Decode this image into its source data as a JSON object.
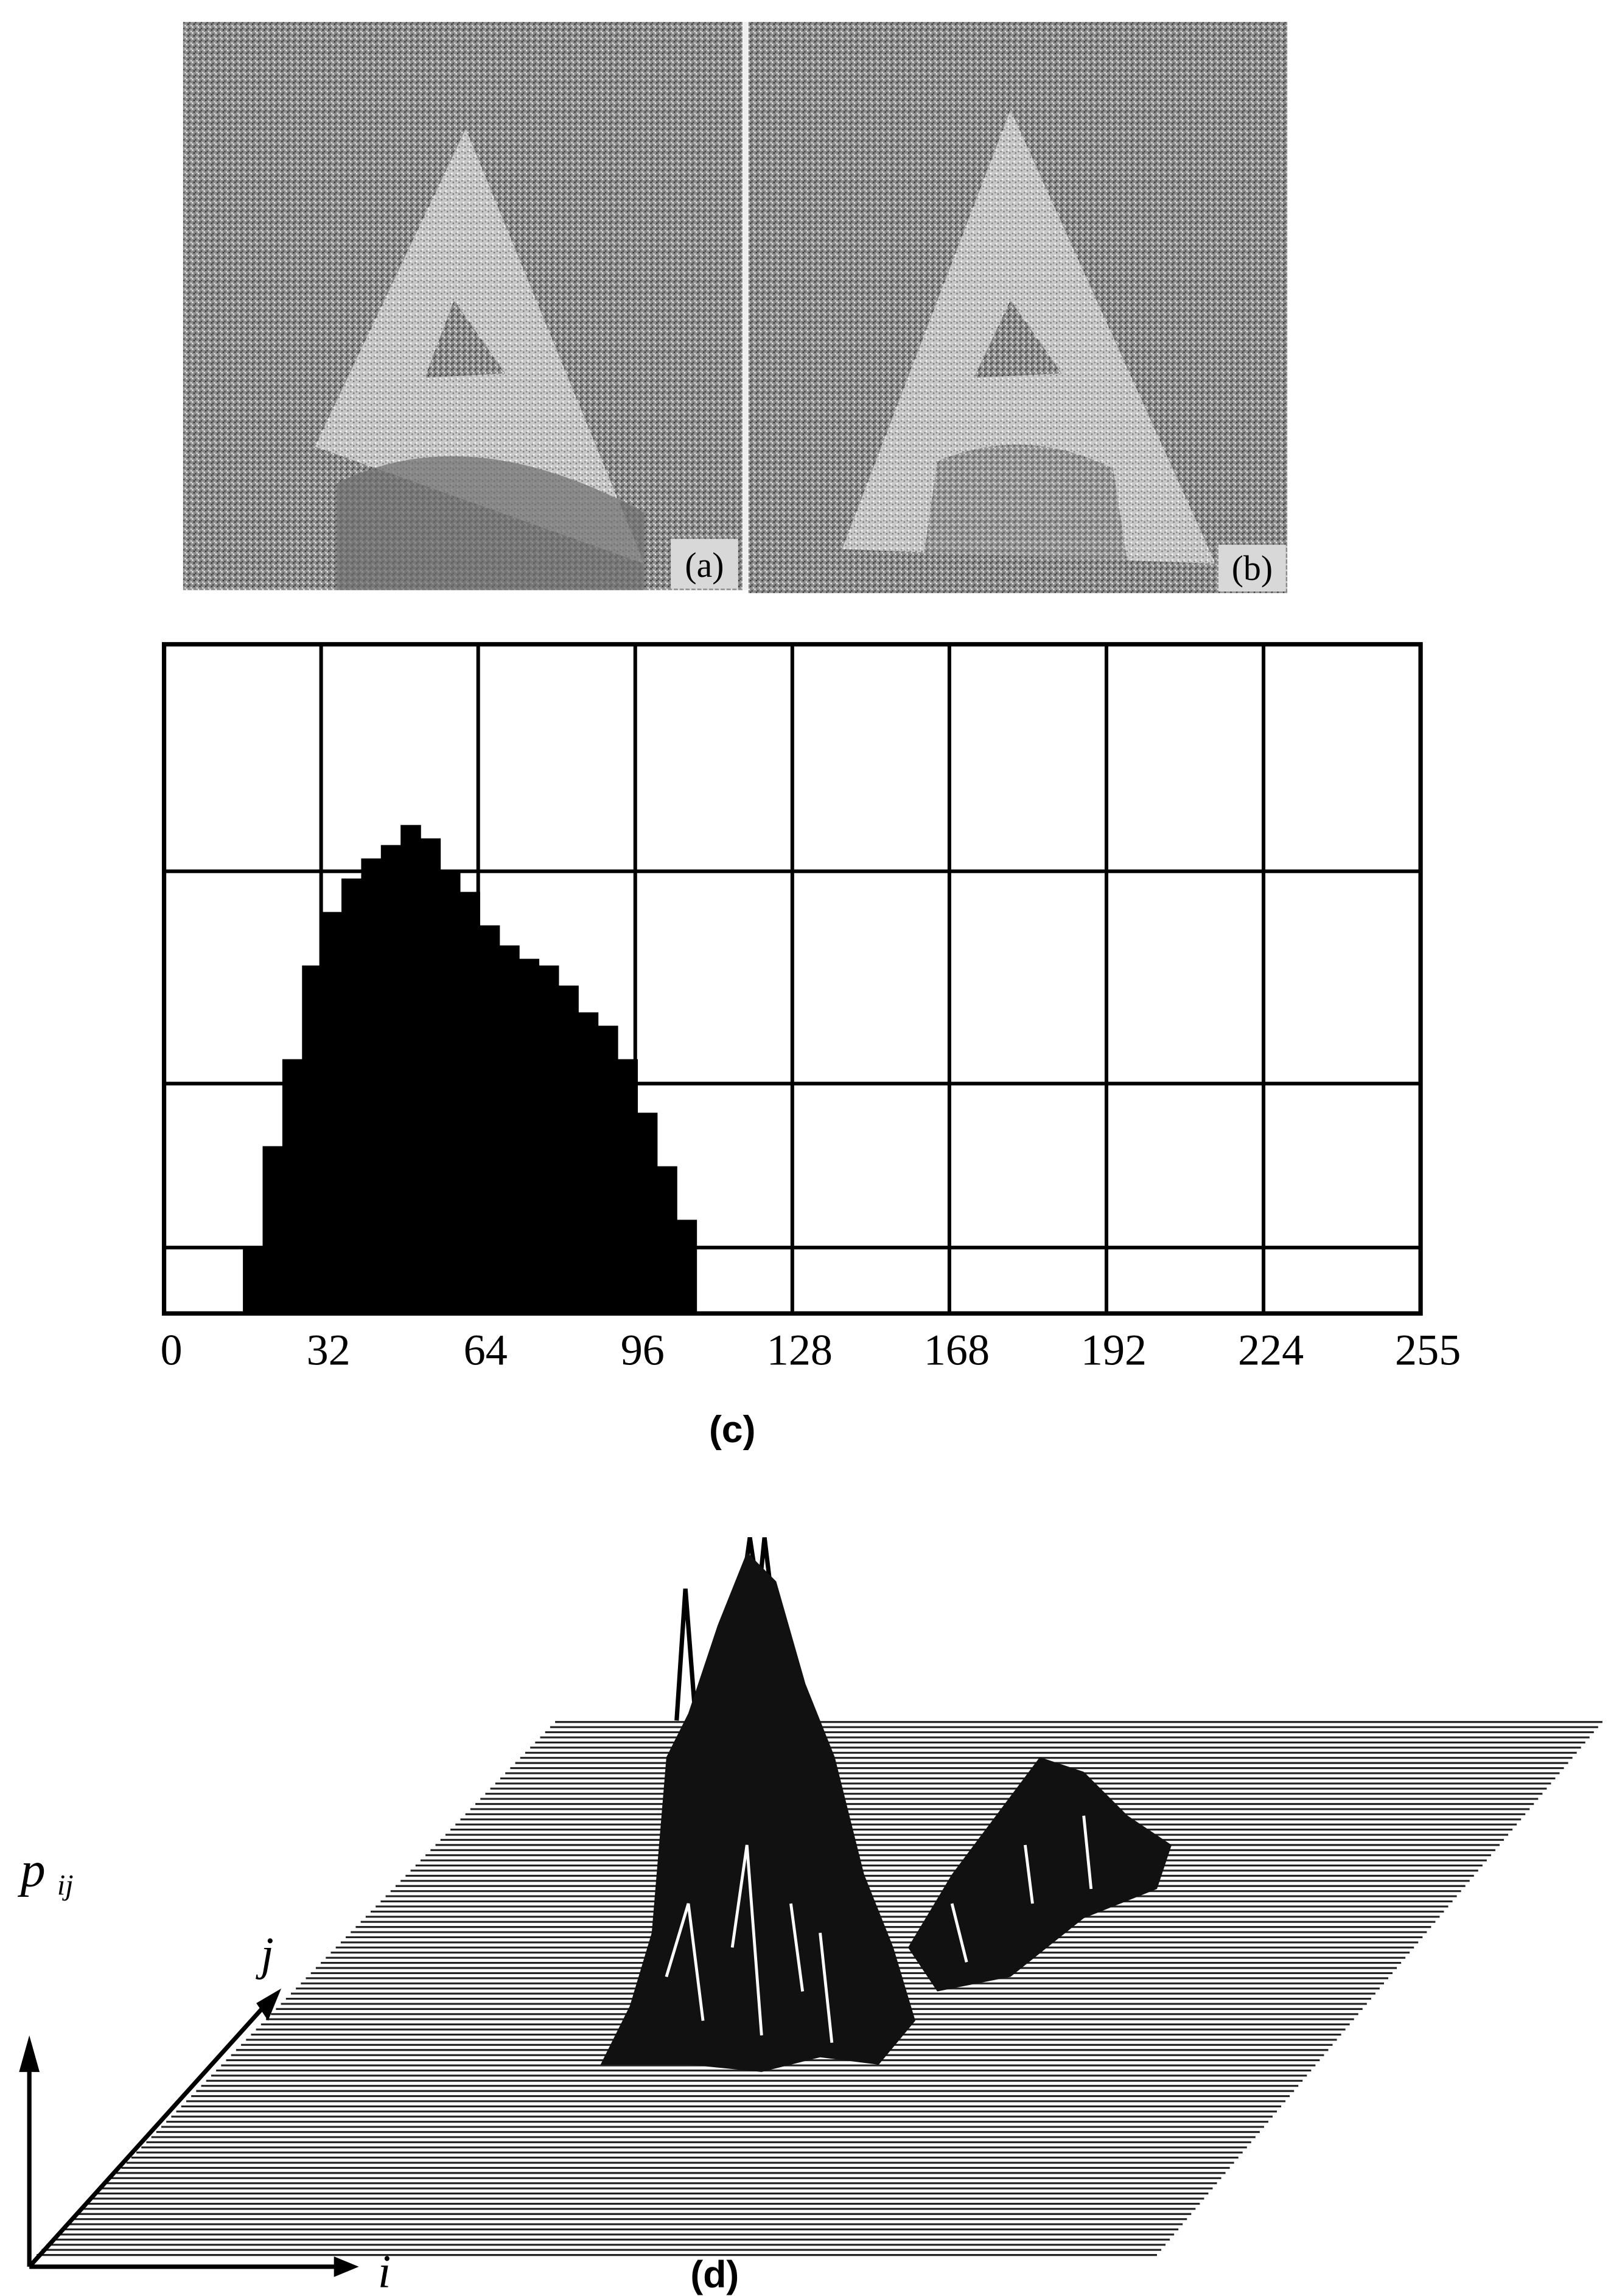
{
  "panels": [
    {
      "label": "(a)"
    },
    {
      "label": "(b)"
    }
  ],
  "histogram": {
    "label": "(c)",
    "xticks": [
      0,
      32,
      64,
      96,
      128,
      168,
      192,
      224,
      255
    ],
    "xlim": [
      0,
      255
    ],
    "bins": [
      16,
      20,
      24,
      28,
      32,
      36,
      40,
      44,
      48,
      52,
      56,
      60,
      64,
      68,
      72,
      76,
      80,
      84,
      88,
      92,
      96,
      100,
      104,
      108
    ],
    "counts": [
      10,
      25,
      38,
      52,
      60,
      65,
      68,
      70,
      73,
      71,
      66,
      63,
      58,
      55,
      53,
      52,
      49,
      45,
      43,
      38,
      30,
      22,
      14
    ]
  },
  "surface": {
    "label": "(d)",
    "z_axis": "p",
    "z_axis_sub": "ij",
    "j_axis": "j",
    "i_axis": "i"
  }
}
